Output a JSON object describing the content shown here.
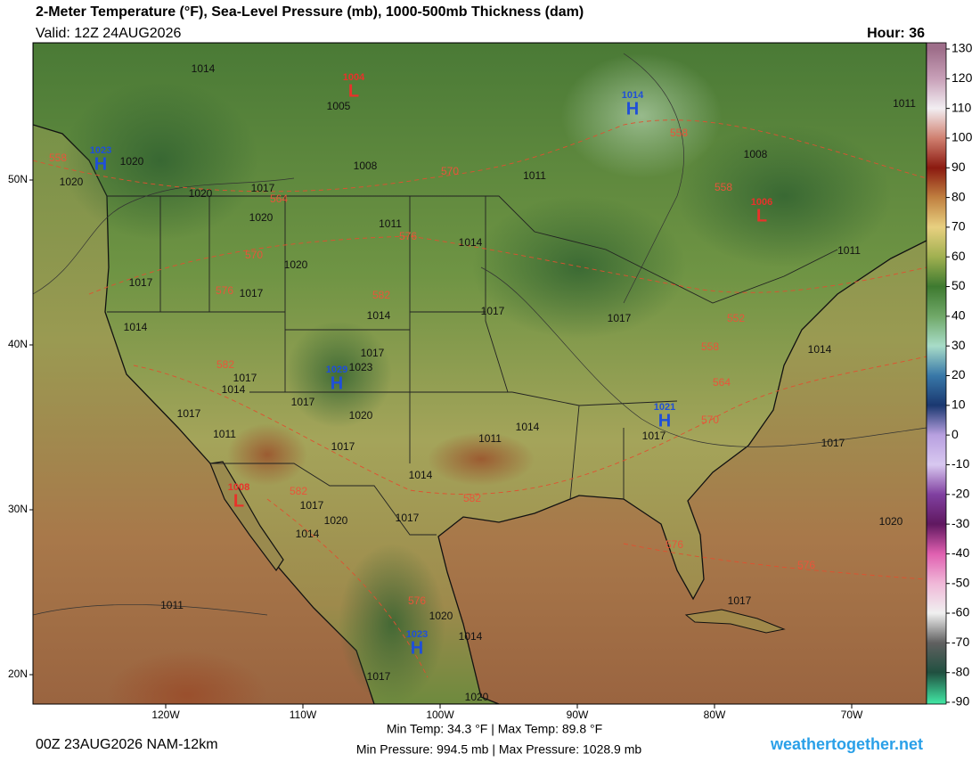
{
  "header": {
    "title": "2-Meter Temperature (°F), Sea-Level Pressure (mb), 1000-500mb Thickness (dam)",
    "valid": "Valid: 12Z 24AUG2026",
    "hour": "Hour: 36"
  },
  "map": {
    "lat_labels": [
      "50N",
      "40N",
      "30N",
      "20N"
    ],
    "lon_labels": [
      "120W",
      "110W",
      "100W",
      "90W",
      "80W",
      "70W"
    ],
    "centers": [
      {
        "label": "L",
        "value": 1004,
        "color": "#e8322a"
      },
      {
        "label": "H",
        "value": 1014,
        "color": "#1f4fd8"
      },
      {
        "label": "H",
        "value": 1023,
        "color": "#1f4fd8"
      },
      {
        "label": "L",
        "value": 1006,
        "color": "#e8322a"
      },
      {
        "label": "H",
        "value": 1029,
        "color": "#1f4fd8"
      },
      {
        "label": "H",
        "value": 1021,
        "color": "#1f4fd8"
      },
      {
        "label": "L",
        "value": 1008,
        "color": "#e8322a"
      },
      {
        "label": "H",
        "value": 1023,
        "color": "#1f4fd8"
      }
    ],
    "isobar_labels": [
      1014,
      1005,
      1008,
      1020,
      1020,
      1020,
      1017,
      1020,
      1011,
      1014,
      1017,
      1017,
      1020,
      1014,
      1017,
      1014,
      1017,
      1017,
      1023,
      1017,
      1014,
      1017,
      1020,
      1017,
      1011,
      1017,
      1011,
      1014,
      1014,
      1017,
      1020,
      1017,
      1014,
      1020,
      1014,
      1011,
      1017,
      1020,
      1017,
      1020,
      1017,
      1011,
      1008,
      1011,
      1014,
      1011,
      1017
    ],
    "thickness_labels": [
      558,
      564,
      570,
      576,
      576,
      582,
      570,
      558,
      558,
      552,
      558,
      564,
      570,
      582,
      582,
      582,
      576,
      576,
      576
    ]
  },
  "colorbar": {
    "ticks": [
      130,
      120,
      110,
      100,
      90,
      80,
      70,
      60,
      50,
      40,
      30,
      20,
      10,
      0,
      -10,
      -20,
      -30,
      -40,
      -50,
      -60,
      -70,
      -80,
      -90
    ],
    "colors": [
      "#9e6e8a",
      "#c8a0b8",
      "#f2eef2",
      "#d08070",
      "#8b1a10",
      "#c08040",
      "#e8d080",
      "#a0b050",
      "#3e7a30",
      "#70a868",
      "#a8dcc8",
      "#3878a8",
      "#1a3870",
      "#b8a0e0",
      "#d8c8f0",
      "#8040a0",
      "#601860",
      "#e060b0",
      "#f0b8d8",
      "#f0f0f0",
      "#606060",
      "#205040",
      "#40e0a0"
    ]
  },
  "footer": {
    "run": "00Z 23AUG2026 NAM-12km",
    "temp": "Min Temp:  34.3 °F | Max Temp:  89.8 °F",
    "pressure": "Min Pressure: 994.5 mb | Max Pressure: 1028.9 mb",
    "site": "weathertogether.net"
  }
}
